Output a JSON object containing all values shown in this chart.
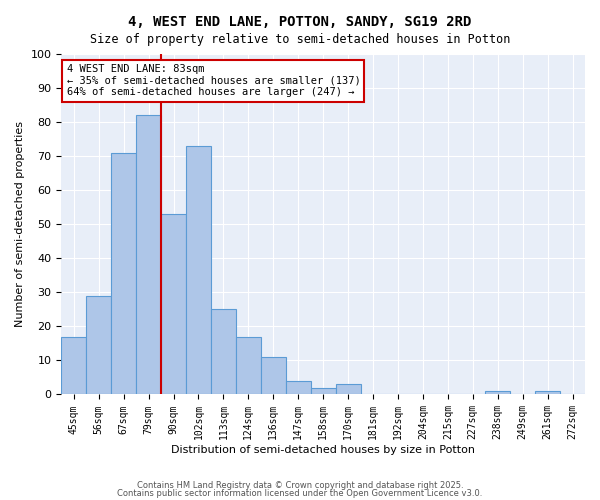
{
  "title1": "4, WEST END LANE, POTTON, SANDY, SG19 2RD",
  "title2": "Size of property relative to semi-detached houses in Potton",
  "xlabel": "Distribution of semi-detached houses by size in Potton",
  "ylabel": "Number of semi-detached properties",
  "bins": [
    45,
    56,
    67,
    79,
    90,
    102,
    113,
    124,
    136,
    147,
    158,
    170,
    181,
    192,
    204,
    215,
    227,
    238,
    249,
    261,
    272
  ],
  "counts": [
    17,
    29,
    71,
    82,
    53,
    73,
    25,
    17,
    11,
    4,
    2,
    3,
    0,
    0,
    0,
    0,
    0,
    1,
    0,
    1,
    0
  ],
  "bar_color": "#aec6e8",
  "bar_edge_color": "#5b9bd5",
  "property_size": 83,
  "vline_color": "#cc0000",
  "annotation_text": "4 WEST END LANE: 83sqm\n← 35% of semi-detached houses are smaller (137)\n64% of semi-detached houses are larger (247) →",
  "annotation_box_color": "#ffffff",
  "annotation_box_edge_color": "#cc0000",
  "ylim": [
    0,
    100
  ],
  "yticks": [
    0,
    10,
    20,
    30,
    40,
    50,
    60,
    70,
    80,
    90,
    100
  ],
  "background_color": "#e8eef8",
  "footer1": "Contains HM Land Registry data © Crown copyright and database right 2025.",
  "footer2": "Contains public sector information licensed under the Open Government Licence v3.0."
}
